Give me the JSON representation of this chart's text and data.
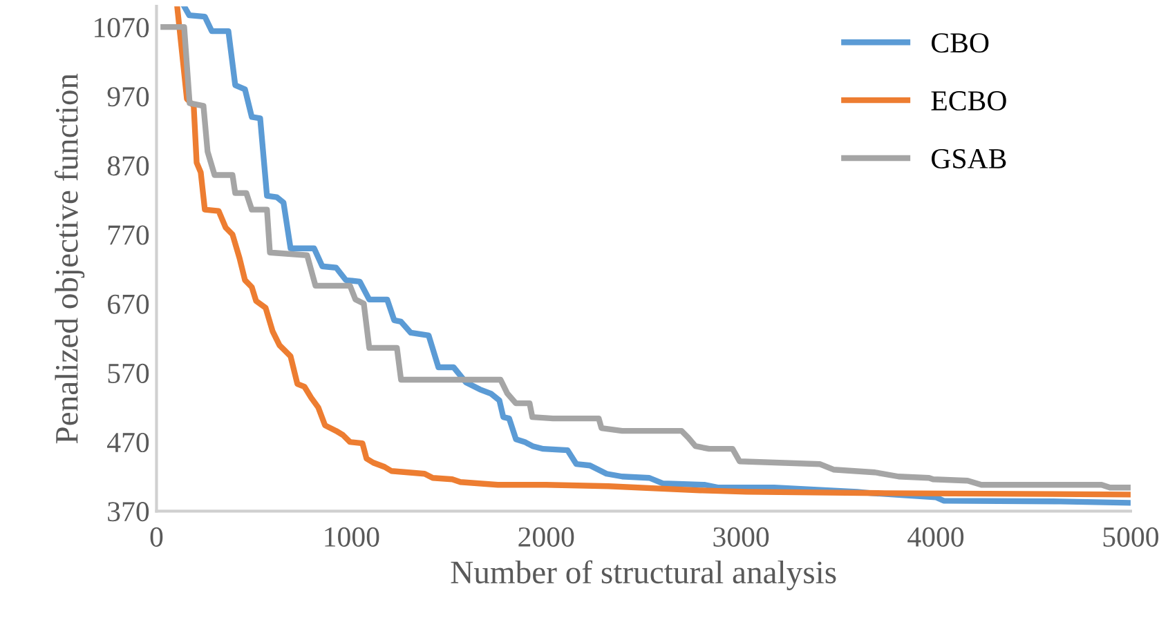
{
  "chart_data": {
    "type": "line",
    "xlabel": "Number of structural analysis",
    "ylabel": "Penalized objective function",
    "xlim": [
      0,
      5000
    ],
    "ylim": [
      370,
      1100
    ],
    "xticks": [
      0,
      1000,
      2000,
      3000,
      4000,
      5000
    ],
    "yticks": [
      370,
      470,
      570,
      670,
      770,
      870,
      970,
      1070
    ],
    "grid": false,
    "legend": "top right",
    "marker": "none",
    "line_style": "solid",
    "series": [
      {
        "name": "CBO",
        "color": "#5b9bd5",
        "x": [
          142,
          168,
          248,
          284,
          369,
          404,
          454,
          489,
          532,
          567,
          617,
          652,
          688,
          809,
          851,
          922,
          972,
          1043,
          1092,
          1184,
          1220,
          1255,
          1305,
          1397,
          1447,
          1525,
          1589,
          1660,
          1716,
          1760,
          1780,
          1810,
          1845,
          1890,
          1930,
          1985,
          2110,
          2155,
          2225,
          2310,
          2390,
          2530,
          2600,
          2815,
          2885,
          3170,
          3596,
          3670,
          4000,
          4040,
          4640,
          5000
        ],
        "values": [
          1100,
          1087,
          1085,
          1064,
          1064,
          986,
          980,
          940,
          938,
          826,
          824,
          816,
          750,
          750,
          724,
          722,
          704,
          702,
          676,
          676,
          646,
          644,
          628,
          624,
          578,
          578,
          556,
          546,
          540,
          530,
          506,
          504,
          474,
          470,
          464,
          460,
          458,
          438,
          436,
          424,
          420,
          418,
          410,
          408,
          404,
          404,
          398,
          396,
          390,
          385,
          384,
          382
        ]
      },
      {
        "name": "ECBO",
        "color": "#ed7d31",
        "x": [
          106,
          121,
          156,
          191,
          206,
          227,
          248,
          319,
          355,
          390,
          426,
          454,
          489,
          511,
          560,
          596,
          631,
          688,
          723,
          759,
          794,
          830,
          865,
          922,
          957,
          993,
          1057,
          1078,
          1113,
          1170,
          1206,
          1376,
          1418,
          1518,
          1560,
          1752,
          2000,
          2320,
          2790,
          3030,
          3740,
          5000
        ],
        "values": [
          1100,
          1060,
          966,
          956,
          874,
          860,
          806,
          804,
          780,
          770,
          736,
          704,
          694,
          674,
          664,
          630,
          610,
          594,
          554,
          550,
          534,
          520,
          494,
          486,
          480,
          470,
          468,
          446,
          440,
          434,
          428,
          424,
          418,
          416,
          412,
          408,
          408,
          406,
          400,
          398,
          396,
          394
        ]
      },
      {
        "name": "GSAB",
        "color": "#a5a5a5",
        "x": [
          35,
          142,
          170,
          241,
          262,
          298,
          390,
          404,
          461,
          489,
          567,
          582,
          773,
          816,
          993,
          1021,
          1064,
          1092,
          1234,
          1255,
          1766,
          1801,
          1844,
          1915,
          1929,
          2035,
          2270,
          2284,
          2390,
          2695,
          2730,
          2766,
          2837,
          2957,
          2993,
          3404,
          3475,
          3688,
          3809,
          3965,
          3986,
          4163,
          4234,
          4851,
          4894,
          5000
        ],
        "values": [
          1070,
          1070,
          960,
          956,
          890,
          856,
          856,
          830,
          830,
          806,
          806,
          744,
          740,
          696,
          696,
          676,
          670,
          606,
          606,
          560,
          560,
          540,
          526,
          526,
          506,
          504,
          504,
          490,
          486,
          486,
          476,
          464,
          460,
          460,
          442,
          438,
          430,
          426,
          420,
          418,
          416,
          414,
          408,
          408,
          404,
          404
        ]
      }
    ]
  }
}
